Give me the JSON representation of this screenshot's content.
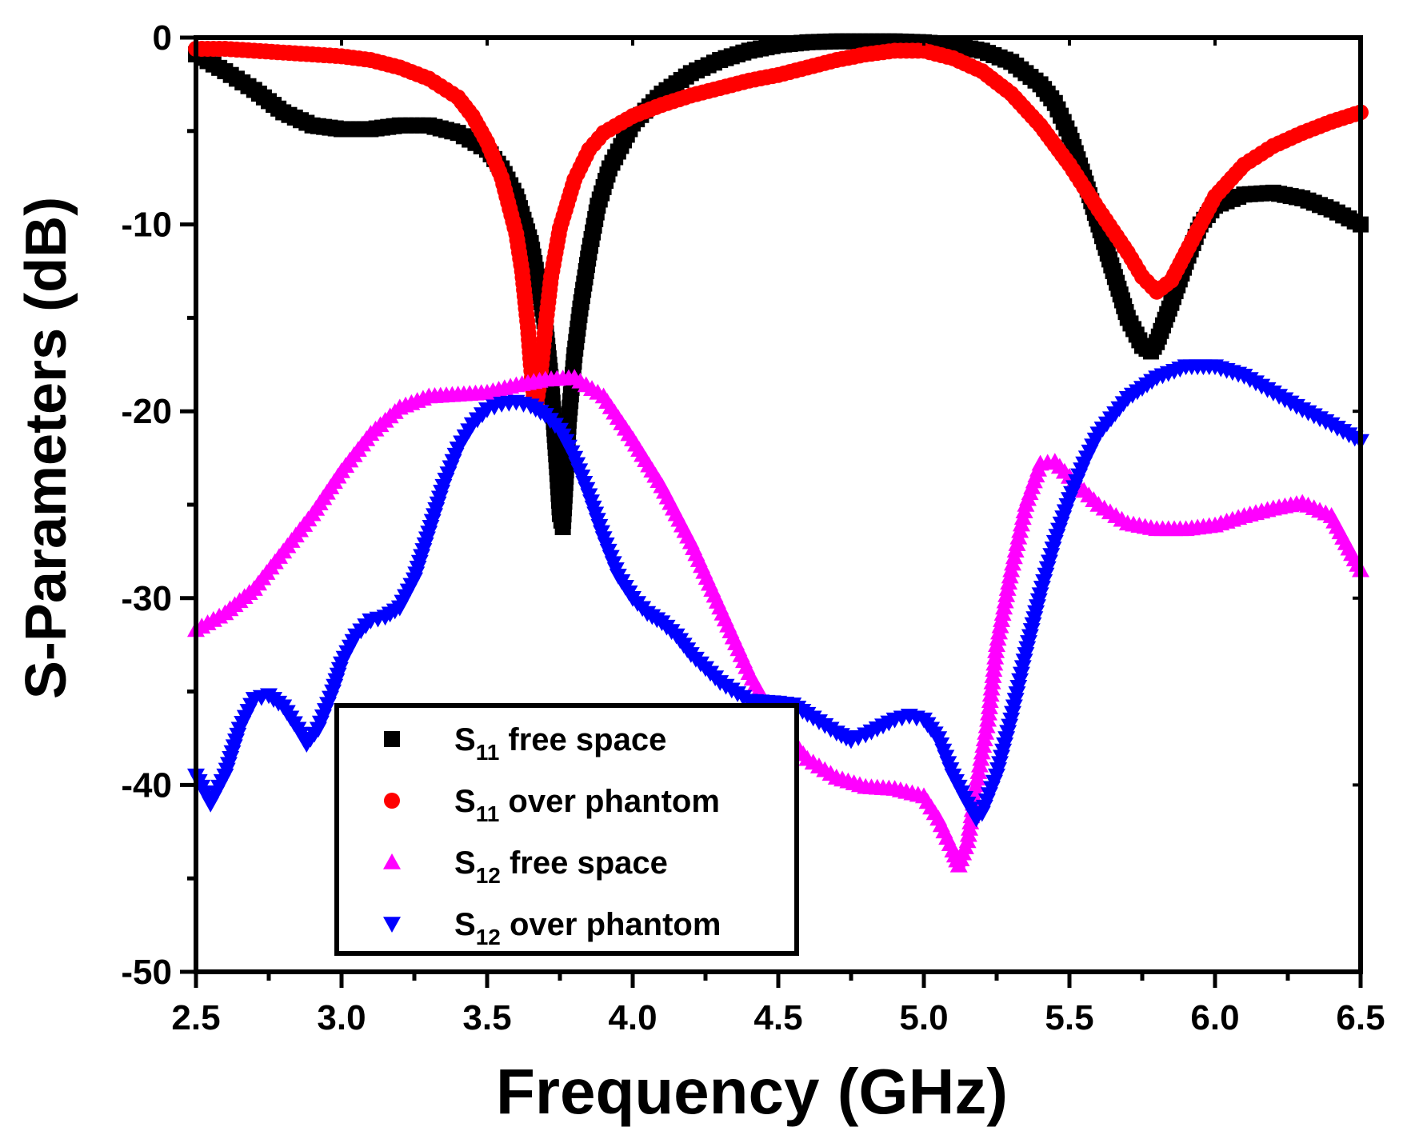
{
  "chart_data": {
    "type": "scatter",
    "title": "",
    "xlabel": "Frequency (GHz)",
    "ylabel": "S-Parameters (dB)",
    "xlim": [
      2.5,
      6.5
    ],
    "ylim": [
      -50,
      0
    ],
    "xticks": [
      2.5,
      3.0,
      3.5,
      4.0,
      4.5,
      5.0,
      5.5,
      6.0,
      6.5
    ],
    "xtick_labels": [
      "2.5",
      "3.0",
      "3.5",
      "4.0",
      "4.5",
      "5.0",
      "5.5",
      "6.0",
      "6.5"
    ],
    "yticks": [
      0,
      -10,
      -20,
      -30,
      -40,
      -50
    ],
    "ytick_labels": [
      "0",
      "-10",
      "-20",
      "-30",
      "-40",
      "-50"
    ],
    "grid": false,
    "legend_position": "bottom-left",
    "series": [
      {
        "name": "S11 free space",
        "label_main": "S",
        "label_sub": "11",
        "label_rest": " free space",
        "color": "#000000",
        "marker": "square",
        "points": [
          [
            2.5,
            -0.9
          ],
          [
            2.6,
            -1.8
          ],
          [
            2.7,
            -2.8
          ],
          [
            2.8,
            -4.0
          ],
          [
            2.9,
            -4.7
          ],
          [
            3.0,
            -4.9
          ],
          [
            3.1,
            -4.9
          ],
          [
            3.2,
            -4.7
          ],
          [
            3.3,
            -4.7
          ],
          [
            3.4,
            -5.1
          ],
          [
            3.5,
            -6.0
          ],
          [
            3.55,
            -7.0
          ],
          [
            3.6,
            -8.5
          ],
          [
            3.65,
            -11.0
          ],
          [
            3.68,
            -13.5
          ],
          [
            3.7,
            -15.5
          ],
          [
            3.72,
            -18.5
          ],
          [
            3.74,
            -23.0
          ],
          [
            3.75,
            -25.5
          ],
          [
            3.76,
            -26.2
          ],
          [
            3.77,
            -23.5
          ],
          [
            3.78,
            -20.5
          ],
          [
            3.8,
            -17.0
          ],
          [
            3.82,
            -14.5
          ],
          [
            3.85,
            -11.5
          ],
          [
            3.88,
            -9.0
          ],
          [
            3.92,
            -7.0
          ],
          [
            4.0,
            -4.6
          ],
          [
            4.1,
            -3.0
          ],
          [
            4.2,
            -1.9
          ],
          [
            4.3,
            -1.2
          ],
          [
            4.4,
            -0.7
          ],
          [
            4.5,
            -0.4
          ],
          [
            4.6,
            -0.25
          ],
          [
            4.7,
            -0.2
          ],
          [
            4.8,
            -0.2
          ],
          [
            4.9,
            -0.2
          ],
          [
            5.0,
            -0.25
          ],
          [
            5.1,
            -0.4
          ],
          [
            5.2,
            -0.7
          ],
          [
            5.3,
            -1.3
          ],
          [
            5.4,
            -2.5
          ],
          [
            5.45,
            -3.5
          ],
          [
            5.5,
            -5.2
          ],
          [
            5.55,
            -7.5
          ],
          [
            5.6,
            -10.0
          ],
          [
            5.65,
            -12.5
          ],
          [
            5.7,
            -15.0
          ],
          [
            5.75,
            -16.5
          ],
          [
            5.78,
            -16.8
          ],
          [
            5.8,
            -16.3
          ],
          [
            5.85,
            -14.2
          ],
          [
            5.9,
            -12.0
          ],
          [
            5.95,
            -10.0
          ],
          [
            6.0,
            -9.0
          ],
          [
            6.1,
            -8.4
          ],
          [
            6.2,
            -8.3
          ],
          [
            6.3,
            -8.6
          ],
          [
            6.4,
            -9.2
          ],
          [
            6.5,
            -10.0
          ]
        ]
      },
      {
        "name": "S11 over phantom",
        "label_main": "S",
        "label_sub": "11",
        "label_rest": " over phantom",
        "color": "#ff0000",
        "marker": "circle",
        "points": [
          [
            2.5,
            -0.6
          ],
          [
            2.6,
            -0.6
          ],
          [
            2.7,
            -0.7
          ],
          [
            2.8,
            -0.8
          ],
          [
            2.9,
            -0.9
          ],
          [
            3.0,
            -1.0
          ],
          [
            3.1,
            -1.2
          ],
          [
            3.2,
            -1.6
          ],
          [
            3.3,
            -2.2
          ],
          [
            3.4,
            -3.2
          ],
          [
            3.45,
            -4.2
          ],
          [
            3.5,
            -5.6
          ],
          [
            3.55,
            -7.5
          ],
          [
            3.6,
            -10.5
          ],
          [
            3.62,
            -12.5
          ],
          [
            3.64,
            -15.5
          ],
          [
            3.65,
            -17.5
          ],
          [
            3.66,
            -19.2
          ],
          [
            3.67,
            -19.5
          ],
          [
            3.68,
            -18.5
          ],
          [
            3.7,
            -15.5
          ],
          [
            3.72,
            -12.8
          ],
          [
            3.75,
            -10.2
          ],
          [
            3.8,
            -7.6
          ],
          [
            3.85,
            -6.0
          ],
          [
            3.9,
            -5.1
          ],
          [
            4.0,
            -4.2
          ],
          [
            4.1,
            -3.6
          ],
          [
            4.2,
            -3.1
          ],
          [
            4.3,
            -2.7
          ],
          [
            4.4,
            -2.3
          ],
          [
            4.5,
            -2.0
          ],
          [
            4.6,
            -1.6
          ],
          [
            4.7,
            -1.2
          ],
          [
            4.8,
            -0.9
          ],
          [
            4.9,
            -0.7
          ],
          [
            5.0,
            -0.7
          ],
          [
            5.1,
            -1.1
          ],
          [
            5.2,
            -1.8
          ],
          [
            5.3,
            -3.0
          ],
          [
            5.4,
            -4.7
          ],
          [
            5.5,
            -6.8
          ],
          [
            5.6,
            -9.2
          ],
          [
            5.7,
            -11.5
          ],
          [
            5.75,
            -12.8
          ],
          [
            5.8,
            -13.6
          ],
          [
            5.85,
            -13.0
          ],
          [
            5.9,
            -11.5
          ],
          [
            5.95,
            -10.0
          ],
          [
            6.0,
            -8.5
          ],
          [
            6.1,
            -6.8
          ],
          [
            6.2,
            -5.8
          ],
          [
            6.3,
            -5.1
          ],
          [
            6.4,
            -4.5
          ],
          [
            6.5,
            -4.0
          ]
        ]
      },
      {
        "name": "S12 free space",
        "label_main": "S",
        "label_sub": "12",
        "label_rest": " free space",
        "color": "#ff00ff",
        "marker": "triangle-up",
        "points": [
          [
            2.5,
            -31.7
          ],
          [
            2.6,
            -30.8
          ],
          [
            2.7,
            -29.5
          ],
          [
            2.8,
            -27.5
          ],
          [
            2.9,
            -25.5
          ],
          [
            3.0,
            -23.2
          ],
          [
            3.1,
            -21.2
          ],
          [
            3.2,
            -19.8
          ],
          [
            3.3,
            -19.2
          ],
          [
            3.4,
            -19.1
          ],
          [
            3.5,
            -19.0
          ],
          [
            3.6,
            -18.6
          ],
          [
            3.7,
            -18.3
          ],
          [
            3.8,
            -18.2
          ],
          [
            3.9,
            -19.2
          ],
          [
            4.0,
            -21.5
          ],
          [
            4.1,
            -24.0
          ],
          [
            4.2,
            -27.0
          ],
          [
            4.3,
            -30.5
          ],
          [
            4.4,
            -34.0
          ],
          [
            4.5,
            -36.8
          ],
          [
            4.6,
            -38.6
          ],
          [
            4.7,
            -39.6
          ],
          [
            4.8,
            -40.1
          ],
          [
            4.9,
            -40.2
          ],
          [
            5.0,
            -40.6
          ],
          [
            5.05,
            -41.8
          ],
          [
            5.1,
            -43.5
          ],
          [
            5.12,
            -44.3
          ],
          [
            5.15,
            -43.0
          ],
          [
            5.18,
            -40.0
          ],
          [
            5.22,
            -36.5
          ],
          [
            5.25,
            -32.5
          ],
          [
            5.3,
            -28.5
          ],
          [
            5.35,
            -25.0
          ],
          [
            5.4,
            -22.8
          ],
          [
            5.45,
            -22.7
          ],
          [
            5.5,
            -23.5
          ],
          [
            5.6,
            -25.0
          ],
          [
            5.7,
            -26.0
          ],
          [
            5.8,
            -26.3
          ],
          [
            5.9,
            -26.3
          ],
          [
            6.0,
            -26.1
          ],
          [
            6.1,
            -25.6
          ],
          [
            6.2,
            -25.2
          ],
          [
            6.3,
            -24.9
          ],
          [
            6.4,
            -25.6
          ],
          [
            6.5,
            -28.5
          ]
        ]
      },
      {
        "name": "S12 over phantom",
        "label_main": "S",
        "label_sub": "12",
        "label_rest": " over phantom",
        "color": "#0000ff",
        "marker": "triangle-down",
        "points": [
          [
            2.5,
            -39.5
          ],
          [
            2.55,
            -41.0
          ],
          [
            2.6,
            -39.5
          ],
          [
            2.65,
            -37.0
          ],
          [
            2.7,
            -35.4
          ],
          [
            2.75,
            -35.2
          ],
          [
            2.8,
            -35.8
          ],
          [
            2.85,
            -37.0
          ],
          [
            2.88,
            -37.8
          ],
          [
            2.92,
            -37.0
          ],
          [
            2.97,
            -35.0
          ],
          [
            3.0,
            -33.5
          ],
          [
            3.05,
            -32.0
          ],
          [
            3.1,
            -31.2
          ],
          [
            3.15,
            -31.0
          ],
          [
            3.2,
            -30.5
          ],
          [
            3.25,
            -29.0
          ],
          [
            3.3,
            -26.5
          ],
          [
            3.35,
            -24.0
          ],
          [
            3.4,
            -22.0
          ],
          [
            3.45,
            -20.7
          ],
          [
            3.5,
            -19.9
          ],
          [
            3.55,
            -19.6
          ],
          [
            3.6,
            -19.5
          ],
          [
            3.65,
            -19.7
          ],
          [
            3.7,
            -20.2
          ],
          [
            3.75,
            -21.0
          ],
          [
            3.8,
            -22.5
          ],
          [
            3.85,
            -24.5
          ],
          [
            3.9,
            -26.8
          ],
          [
            3.95,
            -28.8
          ],
          [
            4.0,
            -30.0
          ],
          [
            4.05,
            -30.8
          ],
          [
            4.1,
            -31.3
          ],
          [
            4.15,
            -32.0
          ],
          [
            4.2,
            -33.0
          ],
          [
            4.3,
            -34.5
          ],
          [
            4.4,
            -35.5
          ],
          [
            4.5,
            -35.6
          ],
          [
            4.55,
            -35.7
          ],
          [
            4.6,
            -36.2
          ],
          [
            4.7,
            -37.2
          ],
          [
            4.75,
            -37.6
          ],
          [
            4.8,
            -37.3
          ],
          [
            4.9,
            -36.5
          ],
          [
            4.95,
            -36.3
          ],
          [
            5.0,
            -36.5
          ],
          [
            5.05,
            -37.5
          ],
          [
            5.1,
            -39.5
          ],
          [
            5.15,
            -41.0
          ],
          [
            5.18,
            -41.8
          ],
          [
            5.2,
            -41.5
          ],
          [
            5.25,
            -39.5
          ],
          [
            5.3,
            -36.5
          ],
          [
            5.35,
            -33.0
          ],
          [
            5.4,
            -29.8
          ],
          [
            5.45,
            -27.0
          ],
          [
            5.5,
            -24.7
          ],
          [
            5.55,
            -22.8
          ],
          [
            5.6,
            -21.2
          ],
          [
            5.7,
            -19.3
          ],
          [
            5.8,
            -18.2
          ],
          [
            5.9,
            -17.6
          ],
          [
            6.0,
            -17.6
          ],
          [
            6.1,
            -18.1
          ],
          [
            6.2,
            -19.0
          ],
          [
            6.3,
            -19.9
          ],
          [
            6.4,
            -20.7
          ],
          [
            6.5,
            -21.6
          ]
        ]
      }
    ]
  }
}
